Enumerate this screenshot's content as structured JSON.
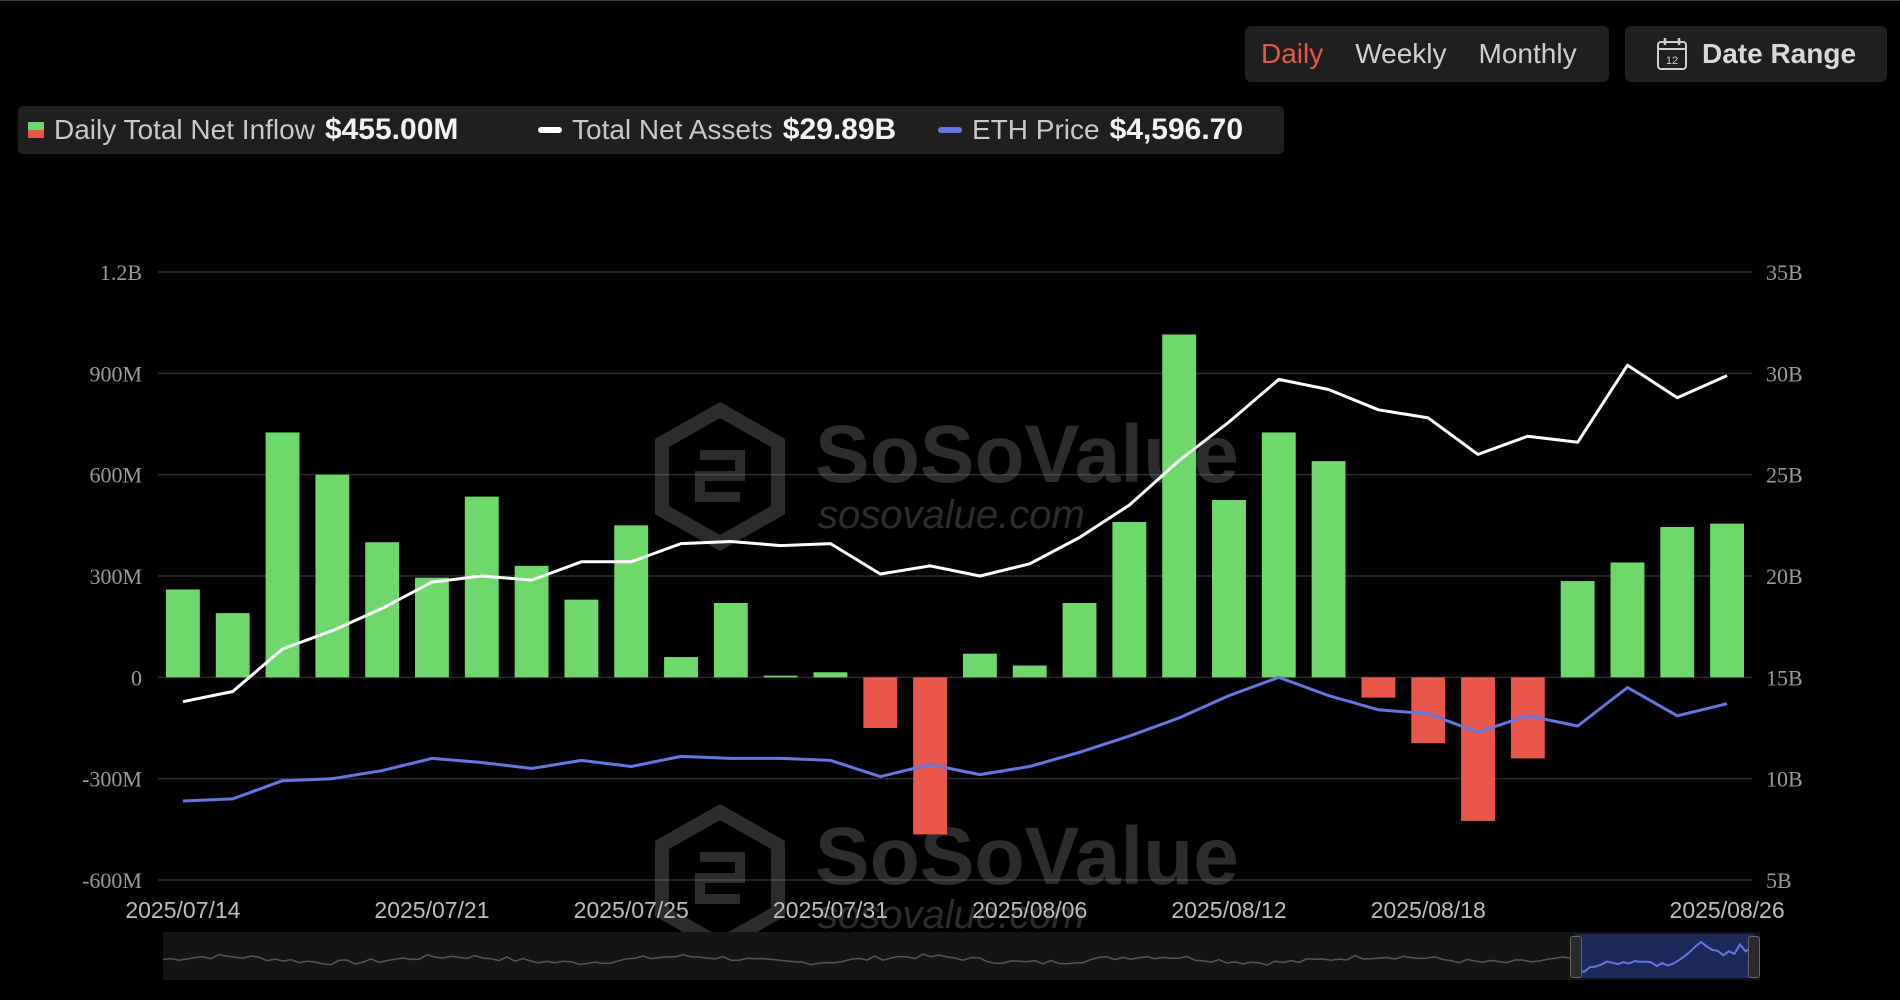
{
  "controls": {
    "periods": [
      "Daily",
      "Weekly",
      "Monthly"
    ],
    "active_period": "Daily",
    "date_range_label": "Date Range",
    "calendar_day": "12"
  },
  "legend": [
    {
      "label": "Daily Total Net Inflow",
      "value": "$455.00M",
      "swatch": "bar",
      "color": "#6fd86a"
    },
    {
      "label": "Total Net Assets",
      "value": "$29.89B",
      "swatch": "line",
      "color": "#ffffff"
    },
    {
      "label": "ETH Price",
      "value": "$4,596.70",
      "swatch": "line",
      "color": "#6676e0"
    }
  ],
  "watermark": {
    "brand": "SoSoValue",
    "domain": "sosovalue.com"
  },
  "chart_data": {
    "type": "bar",
    "left_axis_ticks": [
      "1.2B",
      "900M",
      "600M",
      "300M",
      "0",
      "-300M",
      "-600M"
    ],
    "right_axis_ticks": [
      "35B",
      "30B",
      "25B",
      "20B",
      "15B",
      "10B",
      "5B"
    ],
    "ylim_left": [
      -600,
      1200
    ],
    "ylim_right": [
      5,
      35
    ],
    "x_tick_labels": [
      "2025/07/14",
      "2025/07/21",
      "2025/07/25",
      "2025/07/31",
      "2025/08/06",
      "2025/08/12",
      "2025/08/18",
      "2025/08/26"
    ],
    "x_tick_positions": [
      0,
      5,
      9,
      13,
      17,
      21,
      25,
      31
    ],
    "grid": true,
    "colors": {
      "positive": "#6fd86a",
      "negative": "#e8574a",
      "assets": "#ffffff",
      "price": "#6676e0",
      "grid": "#2c2c2c"
    },
    "series": [
      {
        "name": "Daily Total Net Inflow",
        "kind": "bar",
        "axis": "left",
        "unit": "M",
        "values": [
          260,
          190,
          725,
          600,
          400,
          295,
          535,
          330,
          230,
          450,
          60,
          220,
          5,
          15,
          -150,
          -465,
          70,
          35,
          220,
          460,
          1015,
          525,
          725,
          640,
          -60,
          -195,
          -425,
          -240,
          285,
          340,
          445,
          455
        ]
      },
      {
        "name": "Total Net Assets",
        "kind": "line",
        "axis": "right",
        "unit": "B",
        "values": [
          13.8,
          14.3,
          16.4,
          17.3,
          18.4,
          19.7,
          20.0,
          19.8,
          20.7,
          20.7,
          21.6,
          21.7,
          21.5,
          21.6,
          20.1,
          20.5,
          20.0,
          20.6,
          21.9,
          23.5,
          25.7,
          27.6,
          29.7,
          29.2,
          28.2,
          27.8,
          26.0,
          26.9,
          26.6,
          30.4,
          28.8,
          29.89
        ]
      },
      {
        "name": "ETH Price",
        "kind": "line",
        "axis": "right",
        "values": [
          8.9,
          9.0,
          9.9,
          10.0,
          10.4,
          11.0,
          10.8,
          10.5,
          10.9,
          10.6,
          11.1,
          11.0,
          11.0,
          10.9,
          10.1,
          10.7,
          10.2,
          10.6,
          11.3,
          12.1,
          13.0,
          14.1,
          15.0,
          14.1,
          13.4,
          13.2,
          12.3,
          13.1,
          12.6,
          14.5,
          13.1,
          13.7
        ]
      }
    ]
  }
}
